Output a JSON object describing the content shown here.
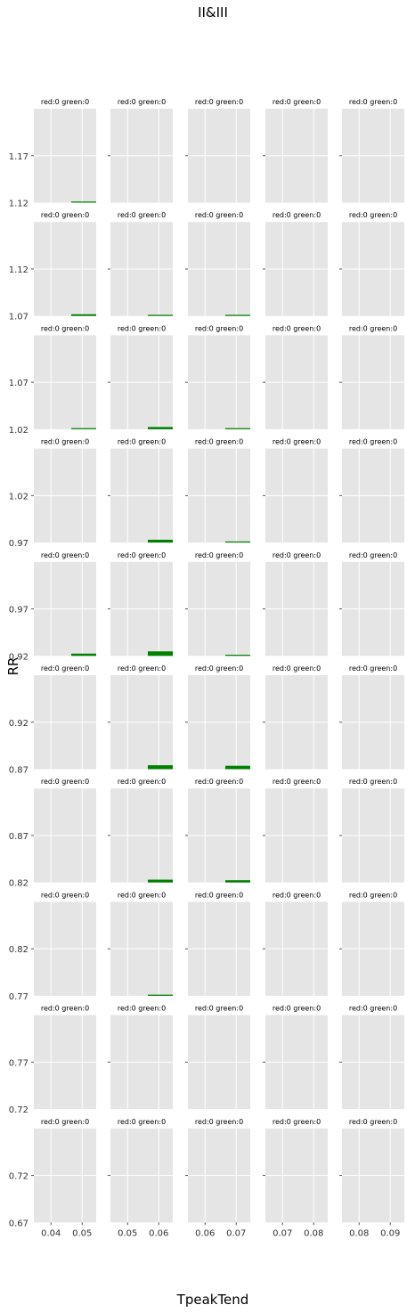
{
  "chart_data": {
    "type": "bar",
    "title": "II&III",
    "xlabel": "TpeakTend",
    "ylabel": "RR",
    "grid": true,
    "bar_color": "#007f00",
    "panel_background": "#e5e5e5",
    "rows": [
      {
        "y_bottom": "1.12",
        "y_tick": "1.17",
        "ylim": [
          1.12,
          1.22
        ]
      },
      {
        "y_bottom": "1.07",
        "y_tick": "1.12",
        "ylim": [
          1.07,
          1.17
        ]
      },
      {
        "y_bottom": "1.02",
        "y_tick": "1.07",
        "ylim": [
          1.02,
          1.12
        ]
      },
      {
        "y_bottom": "0.97",
        "y_tick": "1.02",
        "ylim": [
          0.97,
          1.07
        ]
      },
      {
        "y_bottom": "0.92",
        "y_tick": "0.97",
        "ylim": [
          0.92,
          1.02
        ]
      },
      {
        "y_bottom": "0.87",
        "y_tick": "0.92",
        "ylim": [
          0.87,
          0.97
        ]
      },
      {
        "y_bottom": "0.82",
        "y_tick": "0.87",
        "ylim": [
          0.82,
          0.92
        ]
      },
      {
        "y_bottom": "0.77",
        "y_tick": "0.82",
        "ylim": [
          0.77,
          0.87
        ]
      },
      {
        "y_bottom": "0.72",
        "y_tick": "0.77",
        "ylim": [
          0.72,
          0.82
        ]
      },
      {
        "y_bottom": "0.67",
        "y_tick": "0.72",
        "ylim": [
          0.67,
          0.77
        ]
      }
    ],
    "columns": [
      {
        "x_ticks": [
          {
            "value": 0.04,
            "label": "0.04"
          },
          {
            "value": 0.05,
            "label": "0.05"
          }
        ],
        "xlim": [
          0.0345,
          0.0545
        ]
      },
      {
        "x_ticks": [
          {
            "value": 0.05,
            "label": "0.05"
          },
          {
            "value": 0.06,
            "label": "0.06"
          }
        ],
        "xlim": [
          0.0445,
          0.0645
        ]
      },
      {
        "x_ticks": [
          {
            "value": 0.06,
            "label": "0.06"
          },
          {
            "value": 0.07,
            "label": "0.07"
          }
        ],
        "xlim": [
          0.0545,
          0.0745
        ]
      },
      {
        "x_ticks": [
          {
            "value": 0.07,
            "label": "0.07"
          },
          {
            "value": 0.08,
            "label": "0.08"
          }
        ],
        "xlim": [
          0.0645,
          0.0845
        ]
      },
      {
        "x_ticks": [
          {
            "value": 0.08,
            "label": "0.08"
          },
          {
            "value": 0.09,
            "label": "0.09"
          }
        ],
        "xlim": [
          0.0745,
          0.0945
        ]
      }
    ],
    "panel_title_text": "red:0 green:0",
    "bars": [
      {
        "row": 0,
        "col": 0,
        "x_start": 0.0465,
        "x_end": 0.0545,
        "height": 0.0012
      },
      {
        "row": 1,
        "col": 0,
        "x_start": 0.0465,
        "x_end": 0.0545,
        "height": 0.0018
      },
      {
        "row": 1,
        "col": 1,
        "x_start": 0.0565,
        "x_end": 0.0645,
        "height": 0.0012
      },
      {
        "row": 1,
        "col": 2,
        "x_start": 0.0665,
        "x_end": 0.0745,
        "height": 0.0012
      },
      {
        "row": 2,
        "col": 0,
        "x_start": 0.0465,
        "x_end": 0.0545,
        "height": 0.0012
      },
      {
        "row": 2,
        "col": 1,
        "x_start": 0.0565,
        "x_end": 0.0645,
        "height": 0.0024
      },
      {
        "row": 2,
        "col": 2,
        "x_start": 0.0665,
        "x_end": 0.0745,
        "height": 0.0012
      },
      {
        "row": 3,
        "col": 1,
        "x_start": 0.0565,
        "x_end": 0.0645,
        "height": 0.003
      },
      {
        "row": 3,
        "col": 2,
        "x_start": 0.0665,
        "x_end": 0.0745,
        "height": 0.0012
      },
      {
        "row": 4,
        "col": 0,
        "x_start": 0.0465,
        "x_end": 0.0545,
        "height": 0.0024
      },
      {
        "row": 4,
        "col": 1,
        "x_start": 0.0565,
        "x_end": 0.0645,
        "height": 0.0048
      },
      {
        "row": 4,
        "col": 2,
        "x_start": 0.0665,
        "x_end": 0.0745,
        "height": 0.0012
      },
      {
        "row": 5,
        "col": 1,
        "x_start": 0.0565,
        "x_end": 0.0645,
        "height": 0.0042
      },
      {
        "row": 5,
        "col": 2,
        "x_start": 0.0665,
        "x_end": 0.0745,
        "height": 0.0036
      },
      {
        "row": 6,
        "col": 1,
        "x_start": 0.0565,
        "x_end": 0.0645,
        "height": 0.003
      },
      {
        "row": 6,
        "col": 2,
        "x_start": 0.0665,
        "x_end": 0.0745,
        "height": 0.0024
      },
      {
        "row": 7,
        "col": 1,
        "x_start": 0.0565,
        "x_end": 0.0645,
        "height": 0.0012
      }
    ]
  }
}
